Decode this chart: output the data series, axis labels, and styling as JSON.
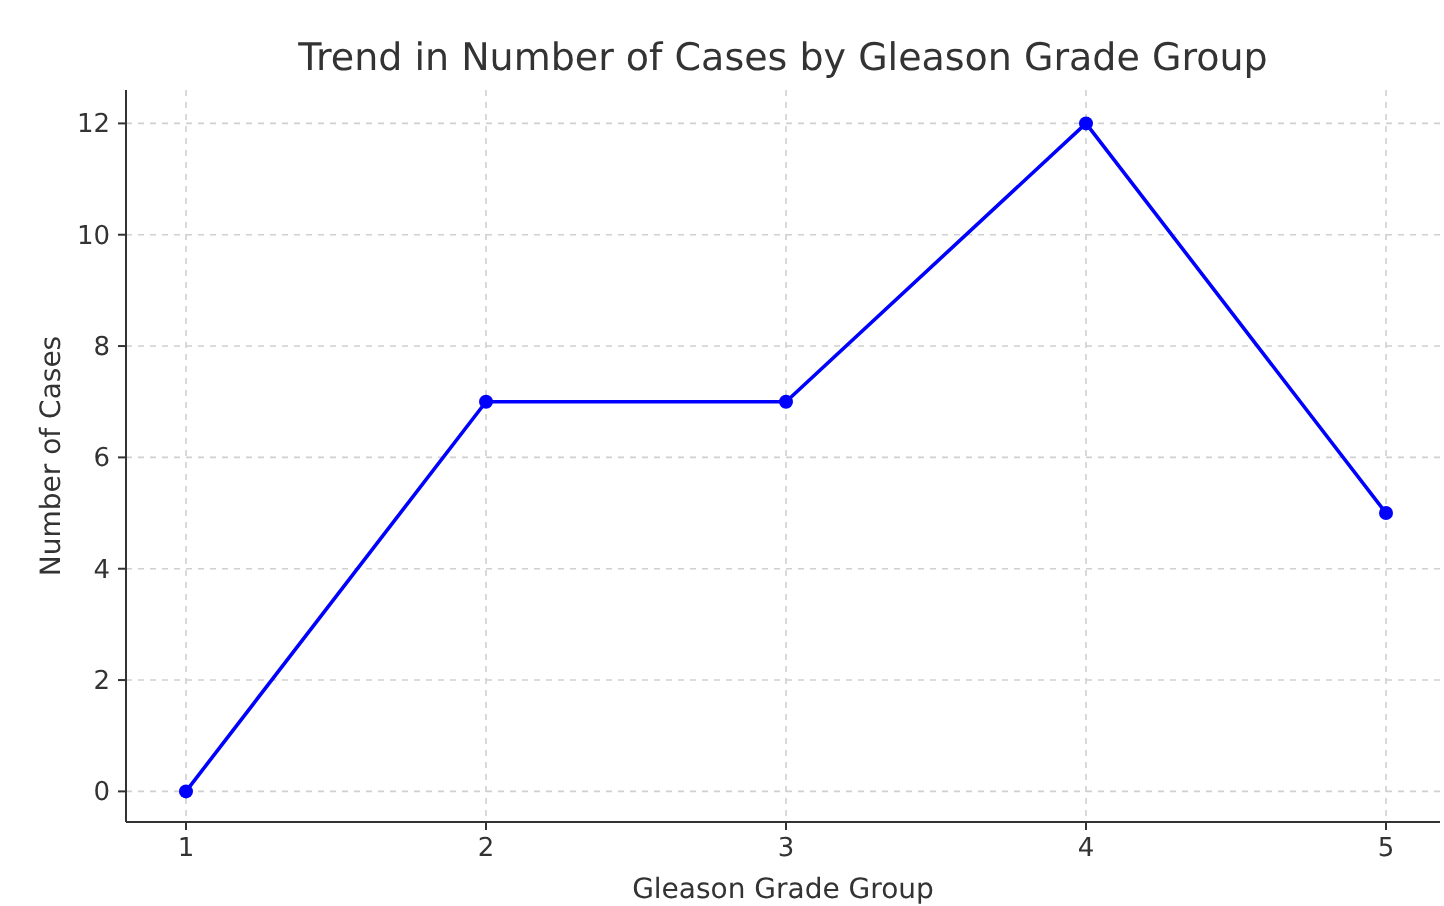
{
  "chart_data": {
    "type": "line",
    "title": "Trend in Number of Cases by Gleason Grade Group",
    "xlabel": "Gleason Grade Group",
    "ylabel": "Number of Cases",
    "x": [
      1,
      2,
      3,
      4,
      5
    ],
    "series": [
      {
        "color": "#0000ff",
        "values": [
          0,
          7,
          7,
          12,
          5
        ]
      }
    ],
    "xlim": [
      0.8,
      5.18
    ],
    "xticks": [
      1,
      2,
      3,
      4,
      5
    ],
    "ylim": [
      -0.55,
      12.6
    ],
    "yticks": [
      0,
      2,
      4,
      6,
      8,
      10,
      12
    ],
    "grid": true,
    "marker": "circle",
    "line_style": "solid"
  }
}
